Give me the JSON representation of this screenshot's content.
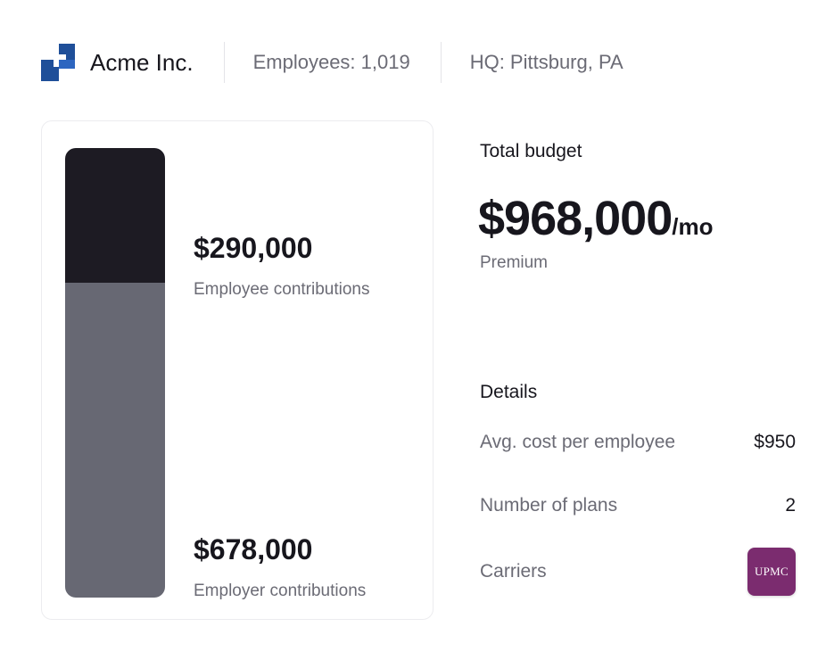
{
  "header": {
    "company_name": "Acme Inc.",
    "employees": "Employees: 1,019",
    "hq": "HQ: Pittsburg, PA",
    "logo_icon": "acme-logo-icon",
    "logo_color": "#1f4f99"
  },
  "contributions": {
    "employee": {
      "amount": "$290,000",
      "label": "Employee contributions",
      "value": 290000,
      "color": "#1d1b23"
    },
    "employer": {
      "amount": "$678,000",
      "label": "Employer contributions",
      "value": 678000,
      "color": "#676873"
    }
  },
  "budget": {
    "title": "Total budget",
    "amount": "$968,000",
    "unit": "/mo",
    "subtitle": "Premium"
  },
  "details": {
    "title": "Details",
    "rows": [
      {
        "label": "Avg. cost per employee",
        "value": "$950"
      },
      {
        "label": "Number of plans",
        "value": "2"
      },
      {
        "label": "Carriers",
        "carrier_logo_text": "UPMC",
        "carrier_color": "#7b2c6f"
      }
    ]
  }
}
